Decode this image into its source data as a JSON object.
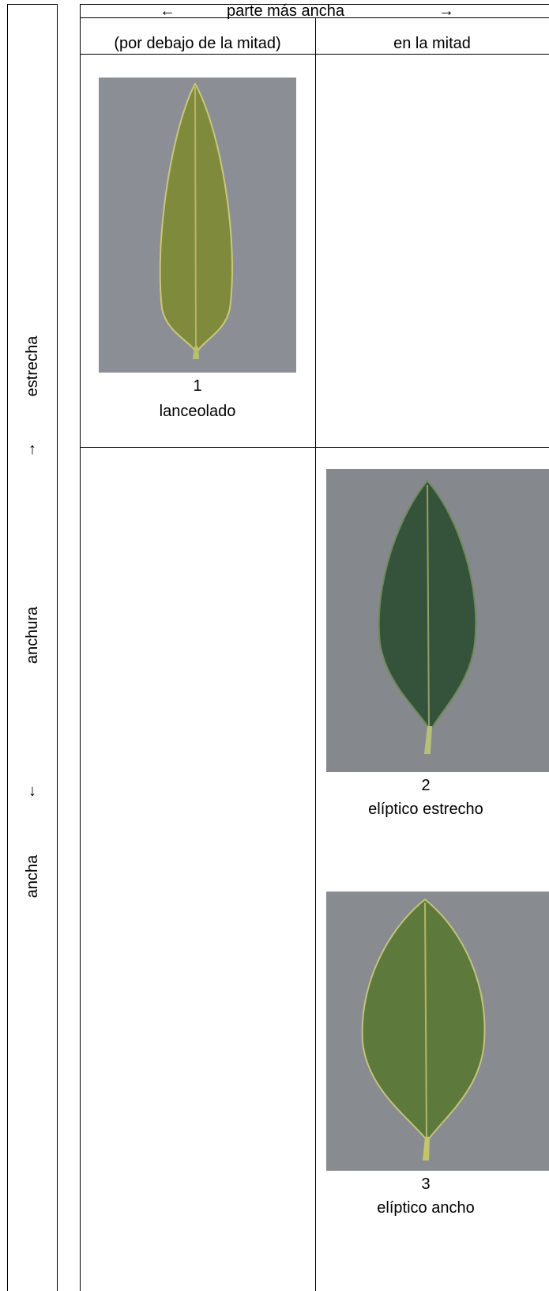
{
  "header": {
    "arrow_left": "←",
    "title": "parte más ancha",
    "arrow_right": "→"
  },
  "columns": [
    "(por debajo de la mitad)",
    "en la mitad"
  ],
  "side": {
    "top": "estrecha",
    "arrow_up": "↑",
    "middle": "anchura",
    "arrow_down": "↓",
    "bottom": "ancha"
  },
  "leaves": [
    {
      "number": 1,
      "label": "lanceolado"
    },
    {
      "number": 2,
      "label": "elíptico estrecho"
    },
    {
      "number": 3,
      "label": "elíptico ancho"
    }
  ]
}
